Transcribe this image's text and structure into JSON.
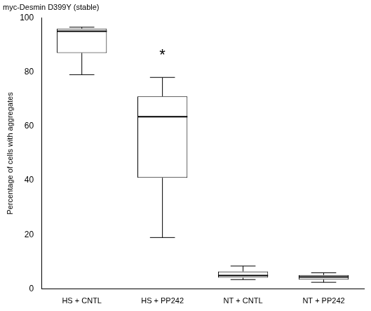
{
  "chart_data": {
    "type": "box",
    "title": "myc-Desmin D399Y (stable)",
    "y_label": "Percentage of cells with aggregates",
    "categories": [
      "HS + CNTL",
      "HS + PP242",
      "NT + CNTL",
      "NT + PP242"
    ],
    "stats": [
      {
        "min": 79,
        "q1": 87,
        "median": 95,
        "q3": 96,
        "max": 96.5
      },
      {
        "min": 19,
        "q1": 41,
        "median": 63.5,
        "q3": 71,
        "max": 78
      },
      {
        "min": 3.5,
        "q1": 4.2,
        "median": 5,
        "q3": 6.5,
        "max": 8.5
      },
      {
        "min": 2.5,
        "q1": 3.5,
        "median": 4.5,
        "q3": 5.2,
        "max": 6
      }
    ],
    "annotations": [
      {
        "text": "*",
        "category": "HS + PP242",
        "y": 86
      }
    ],
    "color": "#000000",
    "ylim": [
      0,
      100
    ],
    "yticks": [
      0,
      20,
      40,
      60,
      80,
      100
    ],
    "grid": false
  }
}
